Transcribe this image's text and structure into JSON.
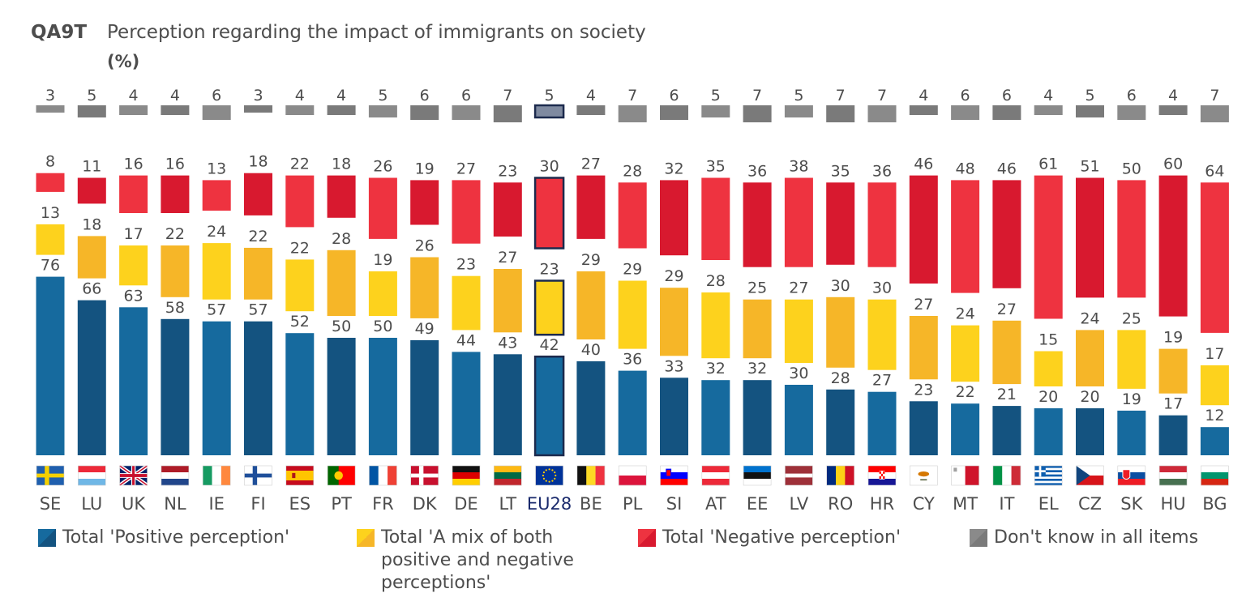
{
  "header": {
    "code": "QA9T",
    "title": "Perception regarding the impact of immigrants on society",
    "unit": "(%)"
  },
  "colors": {
    "positive": "#166a9e",
    "positive_dark": "#145380",
    "mixed": "#fdd21d",
    "mixed_dark": "#f6b628",
    "negative": "#ee3340",
    "negative_dark": "#d8192f",
    "dontknow": "#8a8a8a",
    "dontknow_dark": "#7a7a7a",
    "highlight_border": "#1c2a4d"
  },
  "legend": [
    {
      "key": "positive",
      "label": "Total 'Positive perception'"
    },
    {
      "key": "mixed",
      "label": "Total 'A mix of both positive and negative perceptions'"
    },
    {
      "key": "negative",
      "label": "Total 'Negative perception'"
    },
    {
      "key": "dontknow",
      "label": "Don't know in all items"
    }
  ],
  "chart_data": {
    "type": "bar",
    "stacking": "stacked-separated",
    "categories": [
      "SE",
      "LU",
      "UK",
      "NL",
      "IE",
      "FI",
      "ES",
      "PT",
      "FR",
      "DK",
      "DE",
      "LT",
      "EU28",
      "BE",
      "PL",
      "SI",
      "AT",
      "EE",
      "LV",
      "RO",
      "HR",
      "CY",
      "MT",
      "IT",
      "EL",
      "CZ",
      "SK",
      "HU",
      "BG"
    ],
    "highlight_category": "EU28",
    "series": [
      {
        "name": "Total 'Positive perception'",
        "key": "positive",
        "values": [
          76,
          66,
          63,
          58,
          57,
          57,
          52,
          50,
          50,
          49,
          44,
          43,
          42,
          40,
          36,
          33,
          32,
          32,
          30,
          28,
          27,
          23,
          22,
          21,
          20,
          20,
          19,
          17,
          12
        ]
      },
      {
        "name": "Total 'A mix of both positive and negative perceptions'",
        "key": "mixed",
        "values": [
          13,
          18,
          17,
          22,
          24,
          22,
          22,
          28,
          19,
          26,
          23,
          27,
          23,
          29,
          29,
          29,
          28,
          25,
          27,
          30,
          30,
          27,
          24,
          27,
          15,
          24,
          25,
          19,
          17
        ]
      },
      {
        "name": "Total 'Negative perception'",
        "key": "negative",
        "values": [
          8,
          11,
          16,
          16,
          13,
          18,
          22,
          18,
          26,
          19,
          27,
          23,
          30,
          27,
          28,
          32,
          35,
          36,
          38,
          35,
          36,
          46,
          48,
          46,
          61,
          51,
          50,
          60,
          64
        ]
      },
      {
        "name": "Don't know in all items",
        "key": "dontknow",
        "values": [
          3,
          5,
          4,
          4,
          6,
          3,
          4,
          4,
          5,
          6,
          6,
          7,
          5,
          4,
          7,
          6,
          5,
          7,
          5,
          7,
          7,
          4,
          6,
          6,
          4,
          5,
          6,
          4,
          7
        ]
      }
    ],
    "grid": false,
    "legend_position": "bottom"
  },
  "flags": {
    "SE": {
      "type": "nordic",
      "bg": "#1f5fae",
      "cross": "#f5d000"
    },
    "LU": {
      "type": "hstripes",
      "colors": [
        "#ed2939",
        "#ffffff",
        "#6fb7e6"
      ]
    },
    "UK": {
      "type": "uk"
    },
    "NL": {
      "type": "hstripes",
      "colors": [
        "#ae1c28",
        "#ffffff",
        "#21468b"
      ]
    },
    "IE": {
      "type": "vstripes",
      "colors": [
        "#169b62",
        "#ffffff",
        "#ff883e"
      ]
    },
    "FI": {
      "type": "nordic",
      "bg": "#ffffff",
      "cross": "#1f4f9a"
    },
    "ES": {
      "type": "spain"
    },
    "PT": {
      "type": "portugal"
    },
    "FR": {
      "type": "vstripes",
      "colors": [
        "#0055a4",
        "#ffffff",
        "#ef4135"
      ]
    },
    "DK": {
      "type": "nordic",
      "bg": "#c8102e",
      "cross": "#ffffff"
    },
    "DE": {
      "type": "hstripes",
      "colors": [
        "#111111",
        "#dd0000",
        "#ffce00"
      ]
    },
    "LT": {
      "type": "hstripes",
      "colors": [
        "#fdb913",
        "#006a44",
        "#c1272d"
      ]
    },
    "EU28": {
      "type": "eu"
    },
    "BE": {
      "type": "vstripes",
      "colors": [
        "#111111",
        "#fdda24",
        "#ef3340"
      ]
    },
    "PL": {
      "type": "hstripes",
      "colors": [
        "#ffffff",
        "#dc143c"
      ]
    },
    "SI": {
      "type": "slovenia"
    },
    "AT": {
      "type": "hstripes",
      "colors": [
        "#ed2939",
        "#ffffff",
        "#ed2939"
      ]
    },
    "EE": {
      "type": "hstripes",
      "colors": [
        "#0072ce",
        "#111111",
        "#ffffff"
      ]
    },
    "LV": {
      "type": "latvia"
    },
    "RO": {
      "type": "vstripes",
      "colors": [
        "#002b7f",
        "#fcd116",
        "#ce1126"
      ]
    },
    "HR": {
      "type": "croatia"
    },
    "CY": {
      "type": "cyprus"
    },
    "MT": {
      "type": "malta"
    },
    "IT": {
      "type": "vstripes",
      "colors": [
        "#009246",
        "#ffffff",
        "#ce2b37"
      ]
    },
    "EL": {
      "type": "greece"
    },
    "CZ": {
      "type": "czech"
    },
    "SK": {
      "type": "slovakia"
    },
    "HU": {
      "type": "hstripes",
      "colors": [
        "#ce2939",
        "#ffffff",
        "#477050"
      ]
    },
    "BG": {
      "type": "hstripes",
      "colors": [
        "#ffffff",
        "#00966e",
        "#d62612"
      ]
    }
  }
}
